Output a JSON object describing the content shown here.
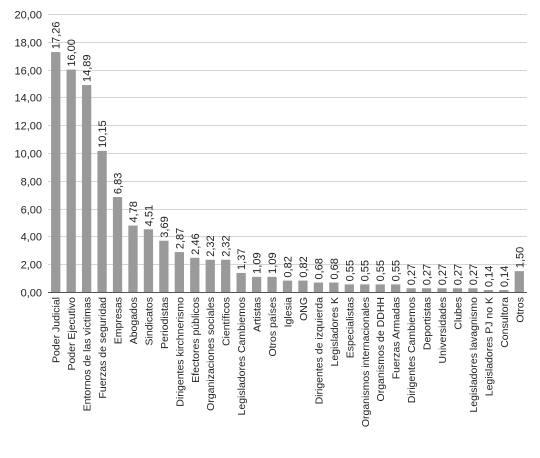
{
  "chart_data": {
    "type": "bar",
    "title": "",
    "xlabel": "",
    "ylabel": "",
    "ylim": [
      0,
      20
    ],
    "yticks": [
      "0,00",
      "2,00",
      "4,00",
      "6,00",
      "8,00",
      "10,00",
      "12,00",
      "14,00",
      "16,00",
      "18,00",
      "20,00"
    ],
    "grid": true,
    "legend": "none",
    "bar_color": "#9a9a9a",
    "categories": [
      "Poder Judicial",
      "Poder Ejecutivo",
      "Entornos de las víctimas",
      "Fuerzas de seguridad",
      "Empresas",
      "Abogados",
      "Sindicatos",
      "Periodistas",
      "Dirigentes kirchnerismo",
      "Efectores públicos",
      "Organizaciones sociales",
      "Científicos",
      "Legisladores Cambiemos",
      "Artistas",
      "Otros países",
      "Iglesia",
      "ONG",
      "Dirigentes de izquierda",
      "Legisladores K",
      "Especialistas",
      "Organismos internacionales",
      "Organismos de DDHH",
      "Fuerzas Armadas",
      "Dirigentes Cambiemos",
      "Deportistas",
      "Universidades",
      "Clubes",
      "Legisladores lavagnismo",
      "Legisladores PJ no K",
      "Consultora",
      "Otros"
    ],
    "values": [
      17.26,
      16.0,
      14.89,
      10.15,
      6.83,
      4.78,
      4.51,
      3.69,
      2.87,
      2.46,
      2.32,
      2.32,
      1.37,
      1.09,
      1.09,
      0.82,
      0.82,
      0.68,
      0.68,
      0.55,
      0.55,
      0.55,
      0.55,
      0.27,
      0.27,
      0.27,
      0.27,
      0.27,
      0.14,
      0.14,
      1.5
    ],
    "labels": [
      "17,26",
      "16,00",
      "14,89",
      "10,15",
      "6,83",
      "4,78",
      "4,51",
      "3,69",
      "2,87",
      "2,46",
      "2,32",
      "2,32",
      "1,37",
      "1,09",
      "1,09",
      "0,82",
      "0,82",
      "0,68",
      "0,68",
      "0,55",
      "0,55",
      "0,55",
      "0,55",
      "0,27",
      "0,27",
      "0,27",
      "0,27",
      "0,27",
      "0,14",
      "0,14",
      "1,50"
    ]
  }
}
